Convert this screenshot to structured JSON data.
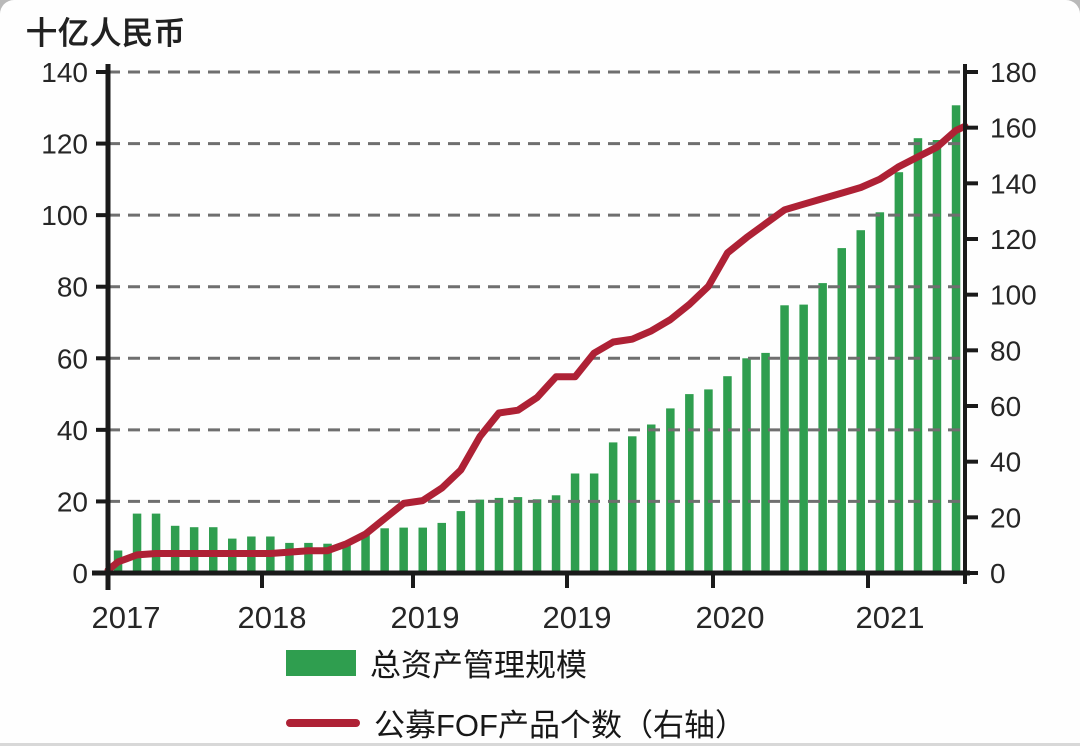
{
  "chart_data": {
    "type": "combo-bar-line",
    "unit_label": "十亿人民币",
    "x_axis": {
      "tick_labels": [
        "2017",
        "2018",
        "2019",
        "2019",
        "2020",
        "2021"
      ]
    },
    "left_axis": {
      "title": "十亿人民币",
      "min": 0,
      "max": 140,
      "tick_step": 20,
      "tick_labels": [
        "0",
        "20",
        "40",
        "60",
        "80",
        "100",
        "120",
        "140"
      ]
    },
    "right_axis": {
      "min": 0,
      "max": 180,
      "tick_step": 20,
      "tick_labels": [
        "0",
        "20",
        "40",
        "60",
        "80",
        "100",
        "120",
        "140",
        "160",
        "180"
      ]
    },
    "grid": {
      "horizontal": "dashed",
      "color": "#6f6f6f"
    },
    "legend_position": "bottom",
    "series": [
      {
        "name": "总资产管理规模",
        "type": "bar",
        "axis": "left",
        "color": "#2f9e4f",
        "values": [
          6.3,
          16.6,
          16.6,
          13.2,
          12.8,
          12.8,
          9.6,
          10.2,
          10.2,
          8.4,
          8.4,
          8.2,
          8.8,
          11,
          12.5,
          12.7,
          12.7,
          14,
          17.3,
          20.5,
          21,
          21.2,
          20.6,
          21.7,
          27.8,
          27.8,
          36.5,
          38.2,
          41.5,
          46,
          50,
          51.3,
          55,
          60,
          61.5,
          74.8,
          75,
          81,
          90.8,
          95.8,
          100.8,
          112,
          121.5,
          121,
          130.7
        ]
      },
      {
        "name": "公募FOF产品个数（右轴）",
        "type": "line",
        "axis": "right",
        "color": "#ae2135",
        "line_start_value": 1,
        "line_end_value": 160.5,
        "values": [
          4,
          6.5,
          7,
          7,
          7,
          7,
          7,
          7,
          7,
          7.5,
          8,
          8,
          10.5,
          14,
          19.5,
          25,
          26,
          30.5,
          37,
          49,
          57.5,
          58.5,
          63,
          70.5,
          70.5,
          79,
          83,
          84,
          87,
          91,
          96.5,
          103,
          115,
          120.5,
          125.5,
          130.5,
          132.5,
          134.5,
          136.5,
          138.5,
          141.5,
          146,
          149.5,
          153,
          159
        ]
      }
    ]
  },
  "legend": {
    "items": [
      {
        "label": "总资产管理规模",
        "swatch": "bar",
        "color": "#2f9e4f"
      },
      {
        "label": "公募FOF产品个数（右轴）",
        "swatch": "line",
        "color": "#ae2135"
      }
    ]
  }
}
